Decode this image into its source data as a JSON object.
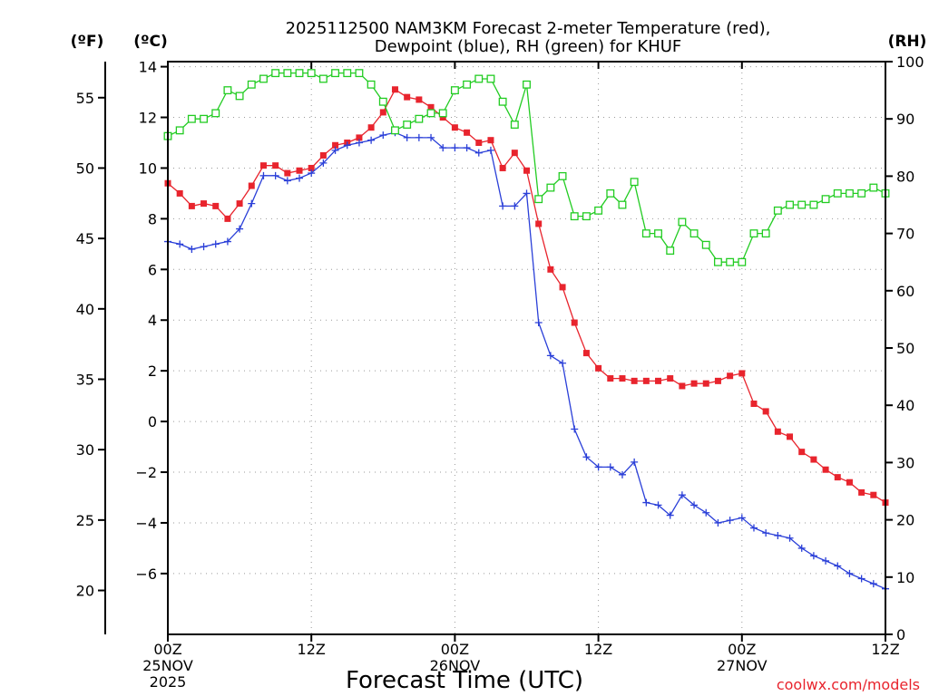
{
  "chart_data": {
    "type": "line",
    "title_lines": [
      "2025112500 NAM3KM Forecast 2-meter Temperature (red),",
      "Dewpoint (blue), RH (green) for KHUF"
    ],
    "xlabel": "Forecast Time (UTC)",
    "credit": "coolwx.com/models",
    "unit_labels": {
      "fahrenheit": "(ºF)",
      "celsius": "(ºC)",
      "rh": "(RH)"
    },
    "x_range_hours": [
      0,
      60
    ],
    "x_ticks": [
      {
        "hour": 0,
        "lines": [
          "00Z",
          "25NOV",
          "2025"
        ]
      },
      {
        "hour": 12,
        "lines": [
          "12Z"
        ]
      },
      {
        "hour": 24,
        "lines": [
          "00Z",
          "26NOV"
        ]
      },
      {
        "hour": 36,
        "lines": [
          "12Z"
        ]
      },
      {
        "hour": 48,
        "lines": [
          "00Z",
          "27NOV"
        ]
      },
      {
        "hour": 60,
        "lines": [
          "12Z"
        ]
      }
    ],
    "celsius_axis": {
      "range": [
        -8.4,
        14.2
      ],
      "ticks": [
        14,
        12,
        10,
        8,
        6,
        4,
        2,
        0,
        -2,
        -4,
        -6
      ],
      "tick_labels": [
        "14",
        "12",
        "10",
        "8",
        "6",
        "4",
        "2",
        "0",
        "−2",
        "−4",
        "−6"
      ]
    },
    "fahrenheit_axis": {
      "ticks": [
        55,
        50,
        45,
        40,
        35,
        30,
        25,
        20
      ],
      "tick_labels": [
        "55",
        "50",
        "45",
        "40",
        "35",
        "30",
        "25",
        "20"
      ]
    },
    "rh_axis": {
      "range": [
        0,
        100
      ],
      "ticks": [
        100,
        90,
        80,
        70,
        60,
        50,
        40,
        30,
        20,
        10,
        0
      ],
      "tick_labels": [
        "100",
        "90",
        "80",
        "70",
        "60",
        "50",
        "40",
        "30",
        "20",
        "10",
        "0"
      ]
    },
    "series": [
      {
        "name": "Temperature (°C)",
        "color": "#e8242d",
        "marker": "filled-square",
        "axis": "celsius",
        "x": [
          0,
          1,
          2,
          3,
          4,
          5,
          6,
          7,
          8,
          9,
          10,
          11,
          12,
          13,
          14,
          15,
          16,
          17,
          18,
          19,
          20,
          21,
          22,
          23,
          24,
          25,
          26,
          27,
          28,
          29,
          30,
          31,
          32,
          33,
          34,
          35,
          36,
          37,
          38,
          39,
          40,
          41,
          42,
          43,
          44,
          45,
          46,
          47,
          48,
          49,
          50,
          51,
          52,
          53,
          54,
          55,
          56,
          57,
          58,
          59,
          60
        ],
        "values": [
          9.4,
          9.0,
          8.5,
          8.6,
          8.5,
          8.0,
          8.6,
          9.3,
          10.1,
          10.1,
          9.8,
          9.9,
          10.0,
          10.5,
          10.9,
          11.0,
          11.2,
          11.6,
          12.2,
          13.1,
          12.8,
          12.7,
          12.4,
          12.0,
          11.6,
          11.4,
          11.0,
          11.1,
          10.0,
          10.6,
          9.9,
          7.8,
          6.0,
          5.3,
          3.9,
          2.7,
          2.1,
          1.7,
          1.7,
          1.6,
          1.6,
          1.6,
          1.7,
          1.4,
          1.5,
          1.5,
          1.6,
          1.8,
          1.9,
          0.7,
          0.4,
          -0.4,
          -0.6,
          -1.2,
          -1.5,
          -1.9,
          -2.2,
          -2.4,
          -2.8,
          -2.9,
          -3.2
        ]
      },
      {
        "name": "Dewpoint (°C)",
        "color": "#2a3fd8",
        "marker": "plus",
        "axis": "celsius",
        "x": [
          0,
          1,
          2,
          3,
          4,
          5,
          6,
          7,
          8,
          9,
          10,
          11,
          12,
          13,
          14,
          15,
          16,
          17,
          18,
          19,
          20,
          21,
          22,
          23,
          24,
          25,
          26,
          27,
          28,
          29,
          30,
          31,
          32,
          33,
          34,
          35,
          36,
          37,
          38,
          39,
          40,
          41,
          42,
          43,
          44,
          45,
          46,
          47,
          48,
          49,
          50,
          51,
          52,
          53,
          54,
          55,
          56,
          57,
          58,
          59,
          60
        ],
        "values": [
          7.1,
          7.0,
          6.8,
          6.9,
          7.0,
          7.1,
          7.6,
          8.6,
          9.7,
          9.7,
          9.5,
          9.6,
          9.8,
          10.2,
          10.7,
          10.9,
          11.0,
          11.1,
          11.3,
          11.4,
          11.2,
          11.2,
          11.2,
          10.8,
          10.8,
          10.8,
          10.6,
          10.7,
          8.5,
          8.5,
          9.0,
          3.9,
          2.6,
          2.3,
          -0.3,
          -1.4,
          -1.8,
          -1.8,
          -2.1,
          -1.6,
          -3.2,
          -3.3,
          -3.7,
          -2.9,
          -3.3,
          -3.6,
          -4.0,
          -3.9,
          -3.8,
          -4.2,
          -4.4,
          -4.5,
          -4.6,
          -5.0,
          -5.3,
          -5.5,
          -5.7,
          -6.0,
          -6.2,
          -6.4,
          -6.6
        ]
      },
      {
        "name": "RH (%)",
        "color": "#22cc22",
        "marker": "open-square",
        "axis": "rh",
        "x": [
          0,
          1,
          2,
          3,
          4,
          5,
          6,
          7,
          8,
          9,
          10,
          11,
          12,
          13,
          14,
          15,
          16,
          17,
          18,
          19,
          20,
          21,
          22,
          23,
          24,
          25,
          26,
          27,
          28,
          29,
          30,
          31,
          32,
          33,
          34,
          35,
          36,
          37,
          38,
          39,
          40,
          41,
          42,
          43,
          44,
          45,
          46,
          47,
          48,
          49,
          50,
          51,
          52,
          53,
          54,
          55,
          56,
          57,
          58,
          59,
          60
        ],
        "values": [
          87,
          88,
          90,
          90,
          91,
          95,
          94,
          96,
          97,
          98,
          98,
          98,
          98,
          97,
          98,
          98,
          98,
          96,
          93,
          88,
          89,
          90,
          91,
          91,
          95,
          96,
          97,
          97,
          93,
          89,
          96,
          76,
          78,
          80,
          73,
          73,
          74,
          77,
          75,
          79,
          70,
          70,
          67,
          72,
          70,
          68,
          65,
          65,
          65,
          70,
          70,
          74,
          75,
          75,
          75,
          76,
          77,
          77,
          77,
          78,
          77
        ]
      }
    ]
  }
}
